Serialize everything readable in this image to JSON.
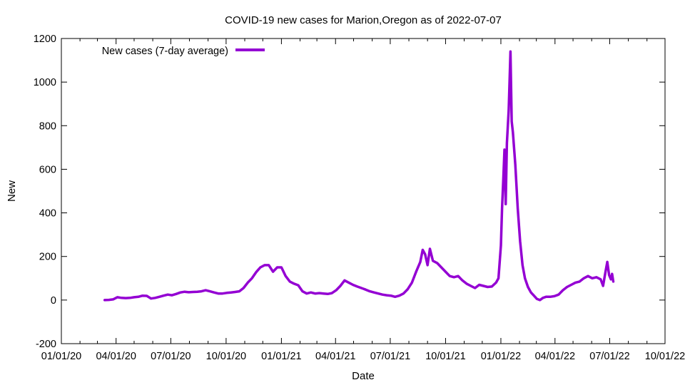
{
  "chart_data": {
    "type": "line",
    "title": "COVID-19 new cases for Marion,Oregon as of 2022-07-07",
    "xlabel": "Date",
    "ylabel": "New",
    "ylim": [
      -200,
      1200
    ],
    "yticks": [
      -200,
      0,
      200,
      400,
      600,
      800,
      1000,
      1200
    ],
    "xlim": [
      "2020-01-01",
      "2022-10-01"
    ],
    "xticks": [
      {
        "date": "2020-01-01",
        "label": "01/01/20"
      },
      {
        "date": "2020-04-01",
        "label": "04/01/20"
      },
      {
        "date": "2020-07-01",
        "label": "07/01/20"
      },
      {
        "date": "2020-10-01",
        "label": "10/01/20"
      },
      {
        "date": "2021-01-01",
        "label": "01/01/21"
      },
      {
        "date": "2021-04-01",
        "label": "04/01/21"
      },
      {
        "date": "2021-07-01",
        "label": "07/01/21"
      },
      {
        "date": "2021-10-01",
        "label": "10/01/21"
      },
      {
        "date": "2022-01-01",
        "label": "01/01/22"
      },
      {
        "date": "2022-04-01",
        "label": "04/01/22"
      },
      {
        "date": "2022-07-01",
        "label": "07/01/22"
      },
      {
        "date": "2022-10-01",
        "label": "10/01/22"
      }
    ],
    "grid": false,
    "legend_position": "top-left",
    "series": [
      {
        "name": "New cases (7-day average)",
        "color": "#9400d3",
        "points": [
          [
            "2020-03-13",
            0
          ],
          [
            "2020-03-20",
            1
          ],
          [
            "2020-03-27",
            3
          ],
          [
            "2020-04-03",
            13
          ],
          [
            "2020-04-10",
            10
          ],
          [
            "2020-04-17",
            9
          ],
          [
            "2020-04-24",
            10
          ],
          [
            "2020-05-01",
            13
          ],
          [
            "2020-05-08",
            15
          ],
          [
            "2020-05-15",
            20
          ],
          [
            "2020-05-22",
            19
          ],
          [
            "2020-05-29",
            7
          ],
          [
            "2020-06-05",
            10
          ],
          [
            "2020-06-12",
            15
          ],
          [
            "2020-06-19",
            20
          ],
          [
            "2020-06-26",
            25
          ],
          [
            "2020-07-03",
            22
          ],
          [
            "2020-07-10",
            28
          ],
          [
            "2020-07-17",
            35
          ],
          [
            "2020-07-24",
            38
          ],
          [
            "2020-07-31",
            36
          ],
          [
            "2020-08-07",
            37
          ],
          [
            "2020-08-14",
            38
          ],
          [
            "2020-08-21",
            40
          ],
          [
            "2020-08-28",
            45
          ],
          [
            "2020-09-04",
            40
          ],
          [
            "2020-09-11",
            35
          ],
          [
            "2020-09-18",
            30
          ],
          [
            "2020-09-25",
            30
          ],
          [
            "2020-10-02",
            33
          ],
          [
            "2020-10-09",
            35
          ],
          [
            "2020-10-16",
            37
          ],
          [
            "2020-10-23",
            40
          ],
          [
            "2020-10-30",
            55
          ],
          [
            "2020-11-06",
            80
          ],
          [
            "2020-11-13",
            100
          ],
          [
            "2020-11-20",
            128
          ],
          [
            "2020-11-27",
            150
          ],
          [
            "2020-12-04",
            160
          ],
          [
            "2020-12-11",
            160
          ],
          [
            "2020-12-18",
            130
          ],
          [
            "2020-12-25",
            150
          ],
          [
            "2021-01-01",
            150
          ],
          [
            "2021-01-08",
            110
          ],
          [
            "2021-01-15",
            85
          ],
          [
            "2021-01-22",
            75
          ],
          [
            "2021-01-29",
            68
          ],
          [
            "2021-02-05",
            40
          ],
          [
            "2021-02-12",
            30
          ],
          [
            "2021-02-19",
            35
          ],
          [
            "2021-02-26",
            30
          ],
          [
            "2021-03-05",
            32
          ],
          [
            "2021-03-12",
            30
          ],
          [
            "2021-03-19",
            28
          ],
          [
            "2021-03-26",
            32
          ],
          [
            "2021-04-02",
            45
          ],
          [
            "2021-04-09",
            65
          ],
          [
            "2021-04-16",
            90
          ],
          [
            "2021-04-23",
            80
          ],
          [
            "2021-04-30",
            70
          ],
          [
            "2021-05-07",
            62
          ],
          [
            "2021-05-14",
            55
          ],
          [
            "2021-05-21",
            48
          ],
          [
            "2021-05-28",
            40
          ],
          [
            "2021-06-04",
            35
          ],
          [
            "2021-06-11",
            30
          ],
          [
            "2021-06-18",
            25
          ],
          [
            "2021-06-25",
            22
          ],
          [
            "2021-07-02",
            20
          ],
          [
            "2021-07-09",
            15
          ],
          [
            "2021-07-16",
            20
          ],
          [
            "2021-07-23",
            30
          ],
          [
            "2021-07-30",
            50
          ],
          [
            "2021-08-06",
            80
          ],
          [
            "2021-08-13",
            130
          ],
          [
            "2021-08-20",
            175
          ],
          [
            "2021-08-24",
            230
          ],
          [
            "2021-08-28",
            210
          ],
          [
            "2021-09-01",
            160
          ],
          [
            "2021-09-05",
            235
          ],
          [
            "2021-09-10",
            180
          ],
          [
            "2021-09-17",
            170
          ],
          [
            "2021-09-24",
            150
          ],
          [
            "2021-10-01",
            130
          ],
          [
            "2021-10-08",
            110
          ],
          [
            "2021-10-15",
            105
          ],
          [
            "2021-10-22",
            110
          ],
          [
            "2021-10-29",
            90
          ],
          [
            "2021-11-05",
            75
          ],
          [
            "2021-11-12",
            65
          ],
          [
            "2021-11-19",
            55
          ],
          [
            "2021-11-26",
            70
          ],
          [
            "2021-12-03",
            65
          ],
          [
            "2021-12-10",
            60
          ],
          [
            "2021-12-17",
            62
          ],
          [
            "2021-12-24",
            80
          ],
          [
            "2021-12-28",
            100
          ],
          [
            "2022-01-01",
            250
          ],
          [
            "2022-01-03",
            420
          ],
          [
            "2022-01-05",
            550
          ],
          [
            "2022-01-07",
            690
          ],
          [
            "2022-01-09",
            440
          ],
          [
            "2022-01-11",
            720
          ],
          [
            "2022-01-14",
            870
          ],
          [
            "2022-01-17",
            1140
          ],
          [
            "2022-01-19",
            820
          ],
          [
            "2022-01-21",
            770
          ],
          [
            "2022-01-25",
            620
          ],
          [
            "2022-01-29",
            420
          ],
          [
            "2022-02-02",
            270
          ],
          [
            "2022-02-06",
            160
          ],
          [
            "2022-02-10",
            100
          ],
          [
            "2022-02-15",
            60
          ],
          [
            "2022-02-20",
            35
          ],
          [
            "2022-02-25",
            20
          ],
          [
            "2022-03-02",
            5
          ],
          [
            "2022-03-07",
            0
          ],
          [
            "2022-03-12",
            10
          ],
          [
            "2022-03-17",
            15
          ],
          [
            "2022-03-24",
            15
          ],
          [
            "2022-03-31",
            18
          ],
          [
            "2022-04-07",
            25
          ],
          [
            "2022-04-14",
            45
          ],
          [
            "2022-04-21",
            60
          ],
          [
            "2022-04-28",
            70
          ],
          [
            "2022-05-05",
            80
          ],
          [
            "2022-05-12",
            85
          ],
          [
            "2022-05-19",
            100
          ],
          [
            "2022-05-26",
            110
          ],
          [
            "2022-06-02",
            100
          ],
          [
            "2022-06-09",
            105
          ],
          [
            "2022-06-16",
            95
          ],
          [
            "2022-06-20",
            65
          ],
          [
            "2022-06-24",
            130
          ],
          [
            "2022-06-27",
            175
          ],
          [
            "2022-06-30",
            115
          ],
          [
            "2022-07-03",
            95
          ],
          [
            "2022-07-05",
            120
          ],
          [
            "2022-07-07",
            85
          ]
        ]
      }
    ]
  }
}
